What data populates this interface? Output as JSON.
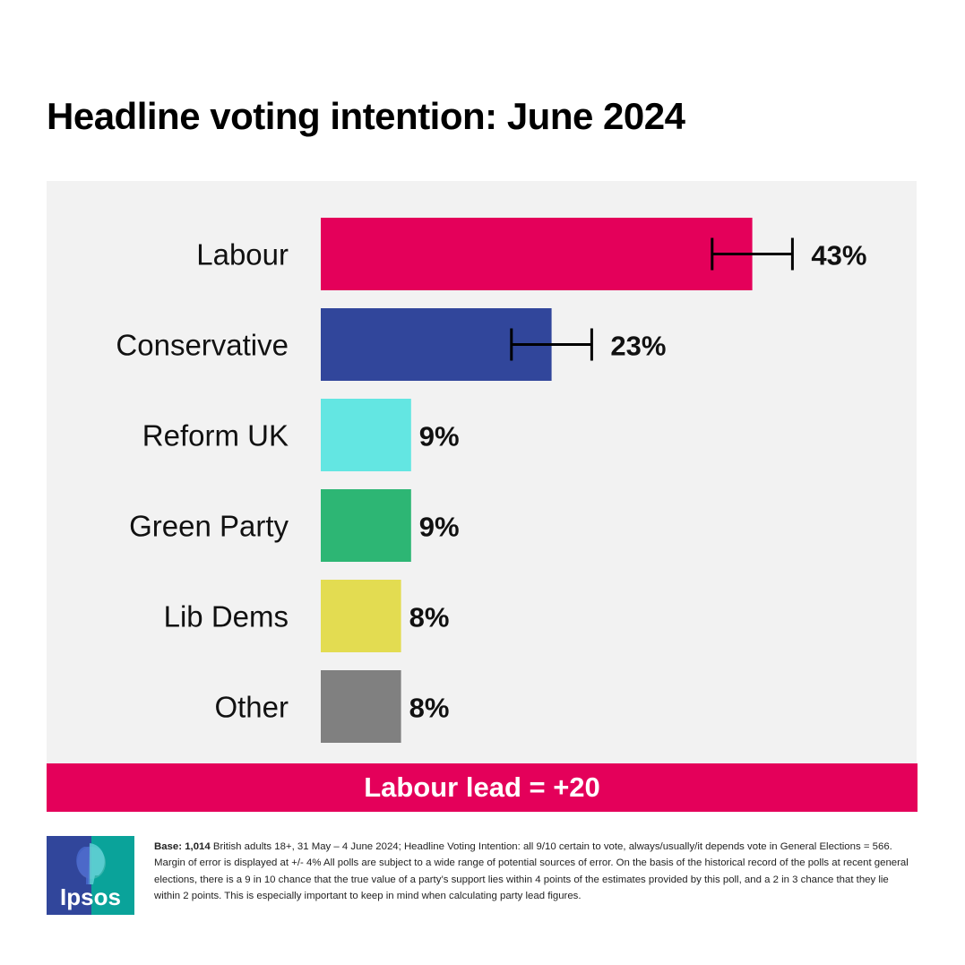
{
  "title": "Headline voting intention: June 2024",
  "lead_banner": "Labour lead = +20",
  "logo": {
    "text": "Ipsos"
  },
  "footnote": {
    "base_label": "Base: 1,014",
    "text": "British adults 18+, 31 May – 4 June 2024; Headline Voting Intention:  all 9/10 certain to vote, always/usually/it depends vote in General Elections = 566. Margin of error is displayed at +/- 4% All polls are subject to a wide range of potential sources of error. On the basis of the historical record of the polls at recent general elections, there is a 9 in 10 chance that the true value of a party’s support lies within 4 points of the estimates provided by this poll, and a 2 in 3 chance that they lie within 2 points. This is especially important to keep in mind when calculating party lead figures."
  },
  "chart_data": {
    "type": "bar",
    "orientation": "horizontal",
    "categories": [
      "Labour",
      "Conservative",
      "Reform UK",
      "Green Party",
      "Lib Dems",
      "Other"
    ],
    "values": [
      43,
      23,
      9,
      9,
      8,
      8
    ],
    "value_labels": [
      "43%",
      "23%",
      "9%",
      "9%",
      "8%",
      "8%"
    ],
    "colors": [
      "#e4005a",
      "#31469b",
      "#63e6e2",
      "#2db674",
      "#e3dc51",
      "#808080"
    ],
    "error_bars": [
      {
        "category": "Labour",
        "low": 39,
        "high": 47
      },
      {
        "category": "Conservative",
        "low": 19,
        "high": 27
      }
    ],
    "title": "Headline voting intention: June 2024",
    "xlabel": "",
    "ylabel": "",
    "grid": false,
    "legend": false
  },
  "colors": {
    "accent": "#e4005a",
    "panel_background": "#f2f2f2",
    "logo_blue": "#31469b",
    "logo_teal": "#0aa39a"
  }
}
